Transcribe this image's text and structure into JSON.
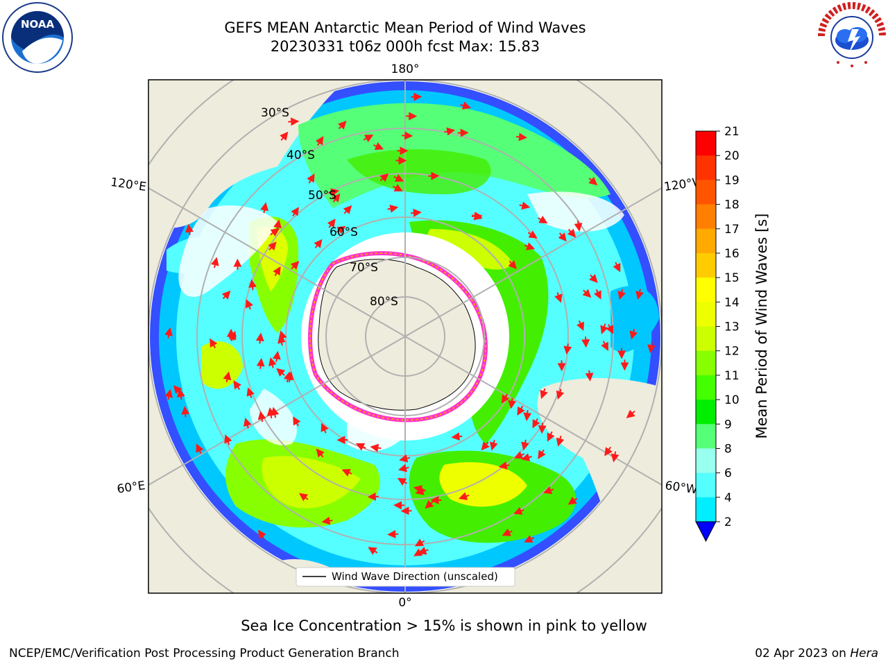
{
  "title": {
    "line1": "GEFS MEAN Antarctic Mean Period of Wind Waves",
    "line2": "20230331 t06z 000h fcst   Max: 15.83"
  },
  "map": {
    "projection": "south-polar-stereographic",
    "longitude_labels": [
      "180°",
      "120°E",
      "120°W",
      "60°E",
      "60°W",
      "0°"
    ],
    "latitude_labels": [
      "30°S",
      "40°S",
      "50°S",
      "60°S",
      "70°S",
      "80°S"
    ],
    "legend_label": "Wind Wave Direction (unscaled)",
    "colors": {
      "land": "#eeecdc",
      "ocean_no_data": "#ffffff",
      "graticule": "#b0b0b0",
      "arrow": "#ff1a1a",
      "sea_ice_edge": "#ff33cc"
    }
  },
  "colorbar": {
    "label": "Mean Period of Wind Waves [s]",
    "ticks": [
      "21",
      "20",
      "19",
      "18",
      "17",
      "16",
      "15",
      "14",
      "13",
      "12",
      "11",
      "10",
      "9",
      "8",
      "6",
      "4",
      "2"
    ],
    "extend": "min",
    "colors": [
      "#ff0000",
      "#ff3300",
      "#ff5500",
      "#ff8000",
      "#ffaa00",
      "#ffcc00",
      "#ffff00",
      "#eeff00",
      "#ccff00",
      "#88ff00",
      "#44ff00",
      "#00ee00",
      "#55ff77",
      "#99ffee",
      "#55ffff",
      "#00eeff",
      "#0088ff",
      "#0000ff"
    ]
  },
  "sea_ice_note": "Sea Ice Concentration > 15% is shown in pink to yellow",
  "footer": {
    "left": "NCEP/EMC/Verification Post Processing Product Generation Branch",
    "right_prefix": "02 Apr 2023 on ",
    "right_host": "Hera"
  },
  "logos": {
    "left": "NOAA",
    "right": "NATIONAL WEATHER SERVICE"
  }
}
